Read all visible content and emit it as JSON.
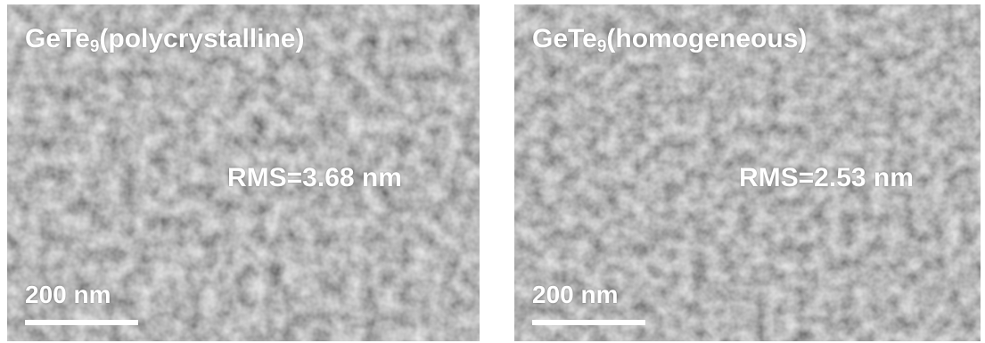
{
  "panels": [
    {
      "title": {
        "formula": "GeTe",
        "subscript": "9",
        "phase": "(polycrystalline)"
      },
      "rms": "RMS=3.68 nm",
      "scale_bar": "200 nm"
    },
    {
      "title": {
        "formula": "GeTe",
        "subscript": "9",
        "phase": "(homogeneous)"
      },
      "rms": "RMS=2.53 nm",
      "scale_bar": "200 nm"
    }
  ]
}
